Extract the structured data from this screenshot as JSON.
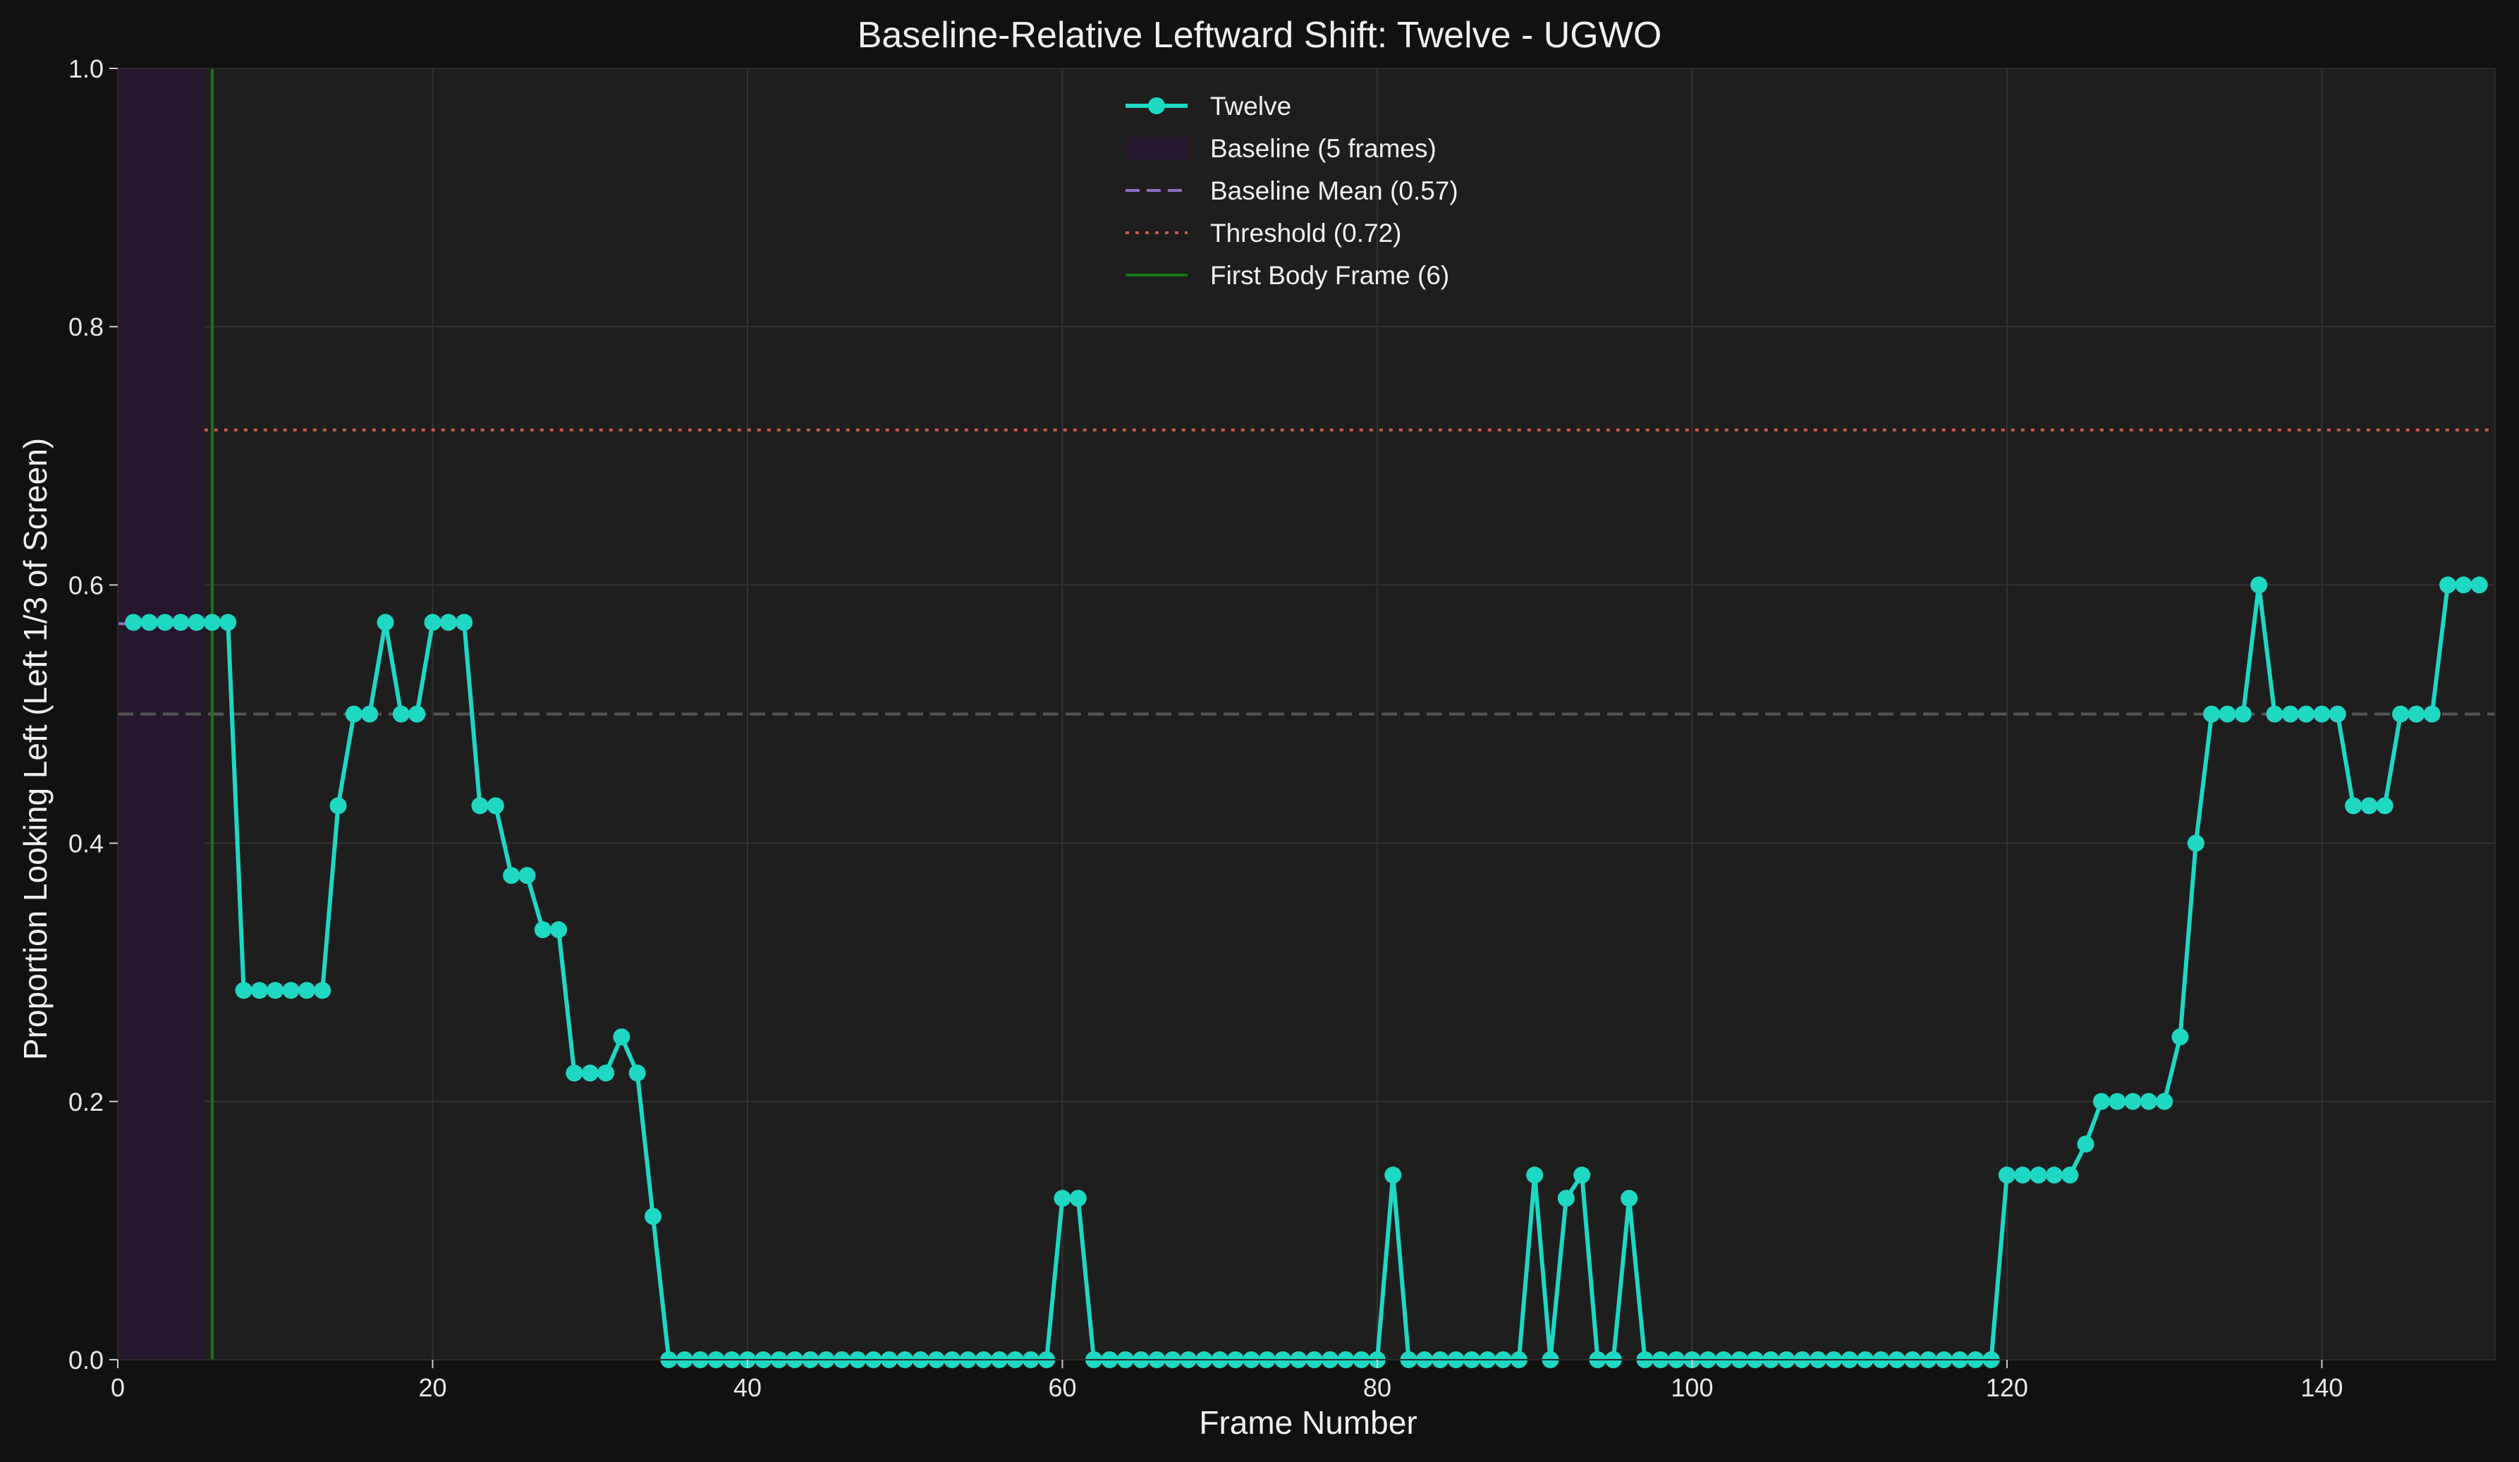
{
  "chart_data": {
    "type": "line",
    "title": "Baseline-Relative Leftward Shift: Twelve - UGWO",
    "xlabel": "Frame Number",
    "ylabel": "Proportion Looking Left (Left 1/3 of Screen)",
    "xlim": [
      0,
      151
    ],
    "ylim": [
      0,
      1.0
    ],
    "xticks": [
      0,
      20,
      40,
      60,
      80,
      100,
      120,
      140
    ],
    "yticks": [
      0.0,
      0.2,
      0.4,
      0.6,
      0.8,
      1.0
    ],
    "xtick_labels": [
      "0",
      "20",
      "40",
      "60",
      "80",
      "100",
      "120",
      "140"
    ],
    "ytick_labels": [
      "0.0",
      "0.2",
      "0.4",
      "0.6",
      "0.8",
      "1.0"
    ],
    "grid": true,
    "legend_position": "top-center",
    "baseline_region": [
      0,
      5.5
    ],
    "baseline_mean": 0.57,
    "chance_level": 0.5,
    "threshold": 0.72,
    "first_body_frame": 6,
    "colors": {
      "series": "#1fd8c4",
      "baseline_region": "#26172f",
      "baseline_mean": "#8c6fc4",
      "threshold": "#cf5a4c",
      "first_body_frame": "#0f7a10",
      "chance_line": "#555555"
    },
    "legend": [
      {
        "label": "Twelve",
        "kind": "line-marker"
      },
      {
        "label": "Baseline (5 frames)",
        "kind": "patch"
      },
      {
        "label": "Baseline Mean (0.57)",
        "kind": "dashed"
      },
      {
        "label": "Threshold (0.72)",
        "kind": "dotted"
      },
      {
        "label": "First Body Frame (6)",
        "kind": "solid-green"
      }
    ],
    "series": [
      {
        "name": "Twelve",
        "x": [
          1,
          2,
          3,
          4,
          5,
          6,
          7,
          8,
          9,
          10,
          11,
          12,
          13,
          14,
          15,
          16,
          17,
          18,
          19,
          20,
          21,
          22,
          23,
          24,
          25,
          26,
          27,
          28,
          29,
          30,
          31,
          32,
          33,
          34,
          35,
          36,
          37,
          38,
          39,
          40,
          41,
          42,
          43,
          44,
          45,
          46,
          47,
          48,
          49,
          50,
          51,
          52,
          53,
          54,
          55,
          56,
          57,
          58,
          59,
          60,
          61,
          62,
          63,
          64,
          65,
          66,
          67,
          68,
          69,
          70,
          71,
          72,
          73,
          74,
          75,
          76,
          77,
          78,
          79,
          80,
          81,
          82,
          83,
          84,
          85,
          86,
          87,
          88,
          89,
          90,
          91,
          92,
          93,
          94,
          95,
          96,
          97,
          98,
          99,
          100,
          101,
          102,
          103,
          104,
          105,
          106,
          107,
          108,
          109,
          110,
          111,
          112,
          113,
          114,
          115,
          116,
          117,
          118,
          119,
          120,
          121,
          122,
          123,
          124,
          125,
          126,
          127,
          128,
          129,
          130,
          131,
          132,
          133,
          134,
          135,
          136,
          137,
          138,
          139,
          140,
          141,
          142,
          143,
          144,
          145,
          146,
          147,
          148,
          149,
          150
        ],
        "values": [
          0.571,
          0.571,
          0.571,
          0.571,
          0.571,
          0.571,
          0.571,
          0.286,
          0.286,
          0.286,
          0.286,
          0.286,
          0.286,
          0.429,
          0.5,
          0.5,
          0.571,
          0.5,
          0.5,
          0.571,
          0.571,
          0.571,
          0.429,
          0.429,
          0.375,
          0.375,
          0.333,
          0.333,
          0.222,
          0.222,
          0.222,
          0.25,
          0.222,
          0.111,
          0,
          0,
          0,
          0,
          0,
          0,
          0,
          0,
          0,
          0,
          0,
          0,
          0,
          0,
          0,
          0,
          0,
          0,
          0,
          0,
          0,
          0,
          0,
          0,
          0,
          0.125,
          0.125,
          0,
          0,
          0,
          0,
          0,
          0,
          0,
          0,
          0,
          0,
          0,
          0,
          0,
          0,
          0,
          0,
          0,
          0,
          0,
          0.143,
          0,
          0,
          0,
          0,
          0,
          0,
          0,
          0,
          0.143,
          0,
          0.125,
          0.143,
          0,
          0,
          0.125,
          0,
          0,
          0,
          0,
          0,
          0,
          0,
          0,
          0,
          0,
          0,
          0,
          0,
          0,
          0,
          0,
          0,
          0,
          0,
          0,
          0,
          0,
          0,
          0.143,
          0.143,
          0.143,
          0.143,
          0.143,
          0.167,
          0.2,
          0.2,
          0.2,
          0.2,
          0.2,
          0.25,
          0.4,
          0.5,
          0.5,
          0.5,
          0.6,
          0.5,
          0.5,
          0.5,
          0.5,
          0.5,
          0.429,
          0.429,
          0.429,
          0.5,
          0.5,
          0.5,
          0.6,
          0.6,
          0.6
        ]
      }
    ]
  }
}
